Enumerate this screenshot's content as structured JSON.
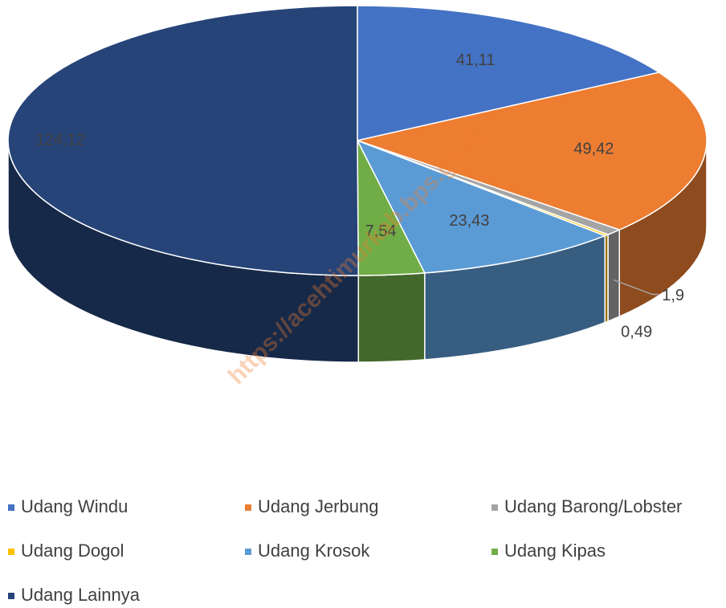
{
  "chart_data": {
    "type": "pie3d",
    "categories": [
      "Udang Windu",
      "Udang Jerbung",
      "Udang Barong/Lobster",
      "Udang Dogol",
      "Udang Krosok",
      "Udang Kipas",
      "Udang Lainnya"
    ],
    "values": [
      41.11,
      49.42,
      1.9,
      0.49,
      23.43,
      7.54,
      124.12
    ],
    "value_labels": [
      "41,11",
      "49,42",
      "1,9",
      "0,49",
      "23,43",
      "7,54",
      "124,12"
    ],
    "colors": [
      "#4472c4",
      "#ed7d31",
      "#a5a5a5",
      "#ffc000",
      "#5b9bd5",
      "#70ad47",
      "#264478"
    ],
    "legend": "bottom",
    "watermark": "https://acehtimurkab.bps.go.id"
  }
}
